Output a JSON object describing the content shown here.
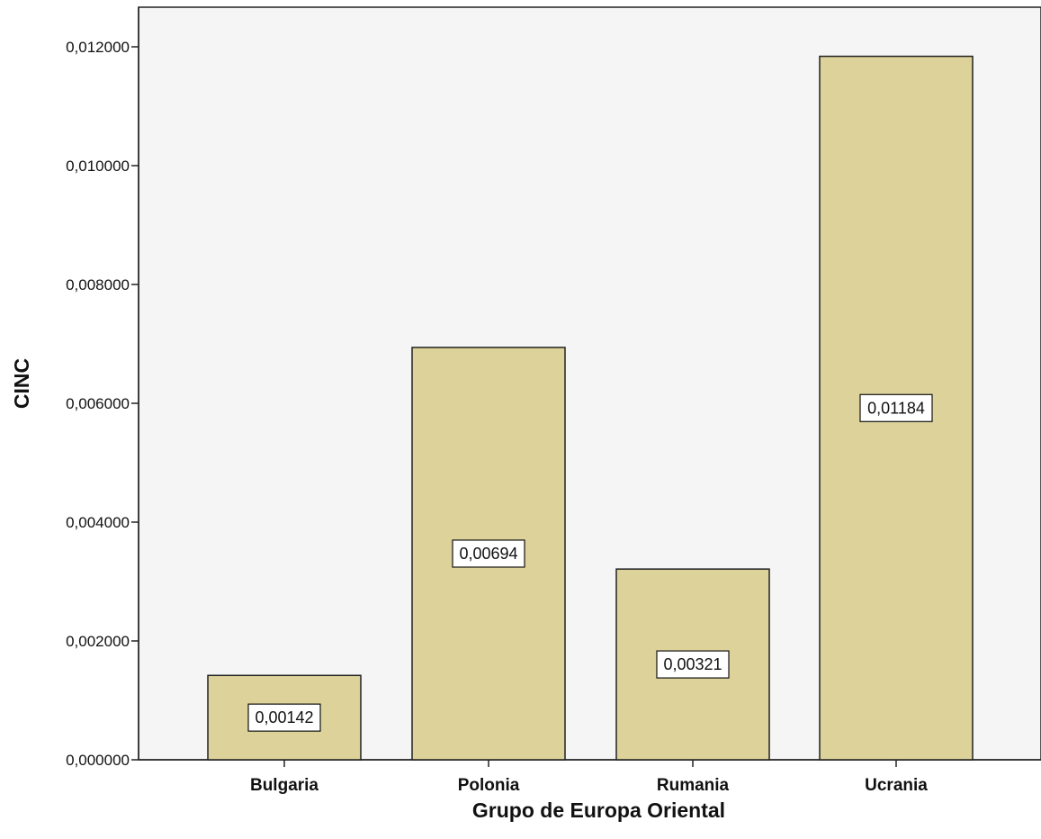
{
  "chart_data": {
    "type": "bar",
    "title": "",
    "xlabel": "Grupo de Europa Oriental",
    "ylabel": "CINC",
    "categories": [
      "Bulgaria",
      "Polonia",
      "Rumania",
      "Ucrania"
    ],
    "values": [
      0.00142,
      0.00694,
      0.00321,
      0.01184
    ],
    "data_labels": [
      "0,00142",
      "0,00694",
      "0,00321",
      "0,01184"
    ],
    "ylim": [
      0,
      0.012
    ],
    "yticks": [
      0,
      0.002,
      0.004,
      0.006,
      0.008,
      0.01,
      0.012
    ],
    "ytick_labels": [
      "0,000000",
      "0,002000",
      "0,004000",
      "0,006000",
      "0,008000",
      "0,010000",
      "0,012000"
    ],
    "grid": false,
    "legend": "none"
  },
  "colors": {
    "plot_background": "#f5f5f5",
    "bar_fill": "#dcd29a",
    "bar_stroke": "#222222",
    "label_box_fill": "#ffffff"
  }
}
